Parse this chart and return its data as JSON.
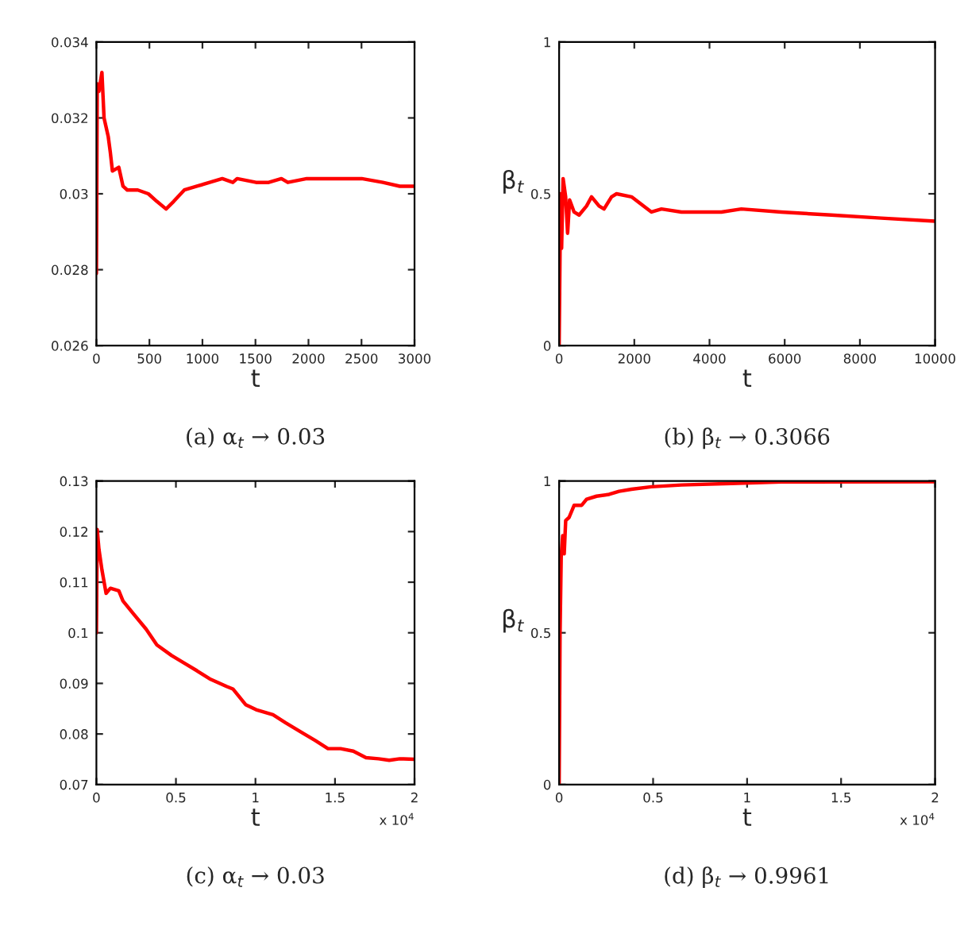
{
  "chart_data": [
    {
      "type": "line",
      "xlabel": "t",
      "xlim": [
        0,
        3000
      ],
      "ylim": [
        0.026,
        0.034
      ],
      "xticks": [
        0,
        500,
        1000,
        1500,
        2000,
        2500,
        3000
      ],
      "yticks": [
        0.026,
        0.028,
        0.03,
        0.032,
        0.034
      ],
      "grid": false,
      "annotations": [
        "(a) α$_{t}$ → 0.03"
      ],
      "series": [
        {
          "color": "#ff0000",
          "x": [
            0,
            8,
            24,
            52,
            72,
            112,
            131,
            151,
            211,
            251,
            291,
            390,
            490,
            570,
            657,
            729,
            829,
            948,
            1068,
            1187,
            1287,
            1327,
            1506,
            1625,
            1745,
            1805,
            1984,
            2143,
            2502,
            2701,
            2861,
            3000
          ],
          "values": [
            0.0279,
            0.0329,
            0.0327,
            0.0332,
            0.032,
            0.0315,
            0.0311,
            0.0306,
            0.0307,
            0.0302,
            0.0301,
            0.0301,
            0.03,
            0.0298,
            0.0296,
            0.0298,
            0.0301,
            0.0302,
            0.0303,
            0.0304,
            0.0303,
            0.0304,
            0.0303,
            0.0303,
            0.0304,
            0.0303,
            0.0304,
            0.0304,
            0.0304,
            0.0303,
            0.0302,
            0.0302
          ]
        }
      ]
    },
    {
      "type": "line",
      "xlabel": "t",
      "ylabel": "β$_{t}$",
      "xlim": [
        0,
        10000
      ],
      "ylim": [
        0,
        1
      ],
      "xticks": [
        0,
        2000,
        4000,
        6000,
        8000,
        10000
      ],
      "yticks": [
        0,
        0.5,
        1
      ],
      "grid": false,
      "annotations": [
        "(b) β$_{t}$ → 0.3066"
      ],
      "series": [
        {
          "color": "#ff0000",
          "x": [
            0,
            40,
            66,
            106,
            173,
            226,
            279,
            398,
            531,
            730,
            863,
            1062,
            1195,
            1394,
            1527,
            1926,
            2457,
            2722,
            3254,
            3918,
            4316,
            4847,
            5910,
            7238,
            8566,
            10000
          ],
          "values": [
            0,
            0.5,
            0.32,
            0.55,
            0.49,
            0.37,
            0.48,
            0.44,
            0.43,
            0.46,
            0.49,
            0.46,
            0.45,
            0.49,
            0.5,
            0.49,
            0.44,
            0.45,
            0.44,
            0.44,
            0.44,
            0.45,
            0.44,
            0.43,
            0.42,
            0.41
          ]
        }
      ]
    },
    {
      "type": "line",
      "xlabel": "t",
      "xlim": [
        0,
        2
      ],
      "ylim": [
        0.07,
        0.13
      ],
      "xticks": [
        0,
        0.5,
        1,
        1.5,
        2
      ],
      "yticks": [
        0.07,
        0.08,
        0.09,
        0.1,
        0.11,
        0.12,
        0.13
      ],
      "grid": false,
      "annotations": [
        "(c) α$_{t}$ → 0.03",
        "x 10$^{4}$"
      ],
      "series": [
        {
          "color": "#ff0000",
          "x": [
            0,
            0.005,
            0.016,
            0.035,
            0.061,
            0.088,
            0.141,
            0.167,
            0.234,
            0.313,
            0.38,
            0.473,
            0.552,
            0.632,
            0.712,
            0.818,
            0.858,
            0.938,
            1.004,
            1.11,
            1.19,
            1.296,
            1.376,
            1.456,
            1.535,
            1.615,
            1.695,
            1.774,
            1.841,
            1.907,
            2.0
          ],
          "values": [
            0.1,
            0.1204,
            0.1165,
            0.1124,
            0.1078,
            0.1088,
            0.1083,
            0.1063,
            0.1037,
            0.1007,
            0.0976,
            0.0955,
            0.094,
            0.0925,
            0.0909,
            0.0894,
            0.0889,
            0.0858,
            0.0848,
            0.0838,
            0.0822,
            0.0802,
            0.0787,
            0.0771,
            0.0771,
            0.0766,
            0.0753,
            0.0751,
            0.0748,
            0.0751,
            0.075
          ]
        }
      ]
    },
    {
      "type": "line",
      "xlabel": "t",
      "ylabel": "β$_{t}$",
      "xlim": [
        0,
        2
      ],
      "ylim": [
        0,
        1
      ],
      "xticks": [
        0,
        0.5,
        1,
        1.5,
        2
      ],
      "yticks": [
        0,
        0.5,
        1
      ],
      "grid": false,
      "annotations": [
        "(d) β$_{t}$ → 0.9961",
        "x 10$^{4}$"
      ],
      "series": [
        {
          "color": "#ff0000",
          "x": [
            0,
            0.005,
            0.011,
            0.019,
            0.027,
            0.035,
            0.053,
            0.08,
            0.12,
            0.146,
            0.199,
            0.266,
            0.319,
            0.385,
            0.491,
            0.651,
            0.916,
            1.182,
            2.0
          ],
          "values": [
            0,
            0.5,
            0.75,
            0.82,
            0.76,
            0.87,
            0.88,
            0.92,
            0.92,
            0.94,
            0.95,
            0.956,
            0.966,
            0.973,
            0.981,
            0.987,
            0.992,
            0.997,
            0.998
          ]
        }
      ]
    }
  ]
}
